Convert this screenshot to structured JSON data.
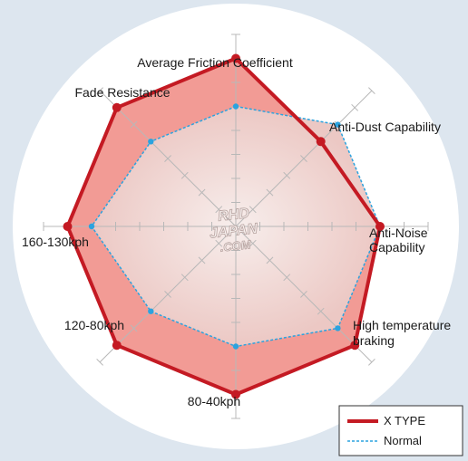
{
  "colors": {
    "background": "#dde6ef",
    "circle": "#ffffff",
    "xtype_line": "#c41a23",
    "xtype_fill": "#f08a82",
    "normal_line": "#2ba3df",
    "grid": "#b8b8b8",
    "text": "#1a1a1a"
  },
  "watermark": {
    "lines": [
      "RHD",
      "JAPAN",
      ".COM"
    ]
  },
  "chart_data": {
    "type": "radar",
    "axes": [
      "Average Friction Coefficient",
      "Anti-Dust Capability",
      "Anti-Noise Capability",
      "High temperature braking",
      "80-40kph",
      "120-80kph",
      "160-130kph",
      "Fade Resistance"
    ],
    "range": [
      0,
      8
    ],
    "grid": true,
    "series": [
      {
        "name": "X TYPE",
        "values": [
          7,
          5,
          6,
          7,
          7,
          7,
          7,
          7
        ]
      },
      {
        "name": "Normal",
        "values": [
          5,
          6,
          6,
          6,
          5,
          5,
          6,
          5
        ]
      }
    ],
    "legend_position": "bottom-right"
  },
  "legend": {
    "items": [
      "X TYPE",
      "Normal"
    ]
  }
}
